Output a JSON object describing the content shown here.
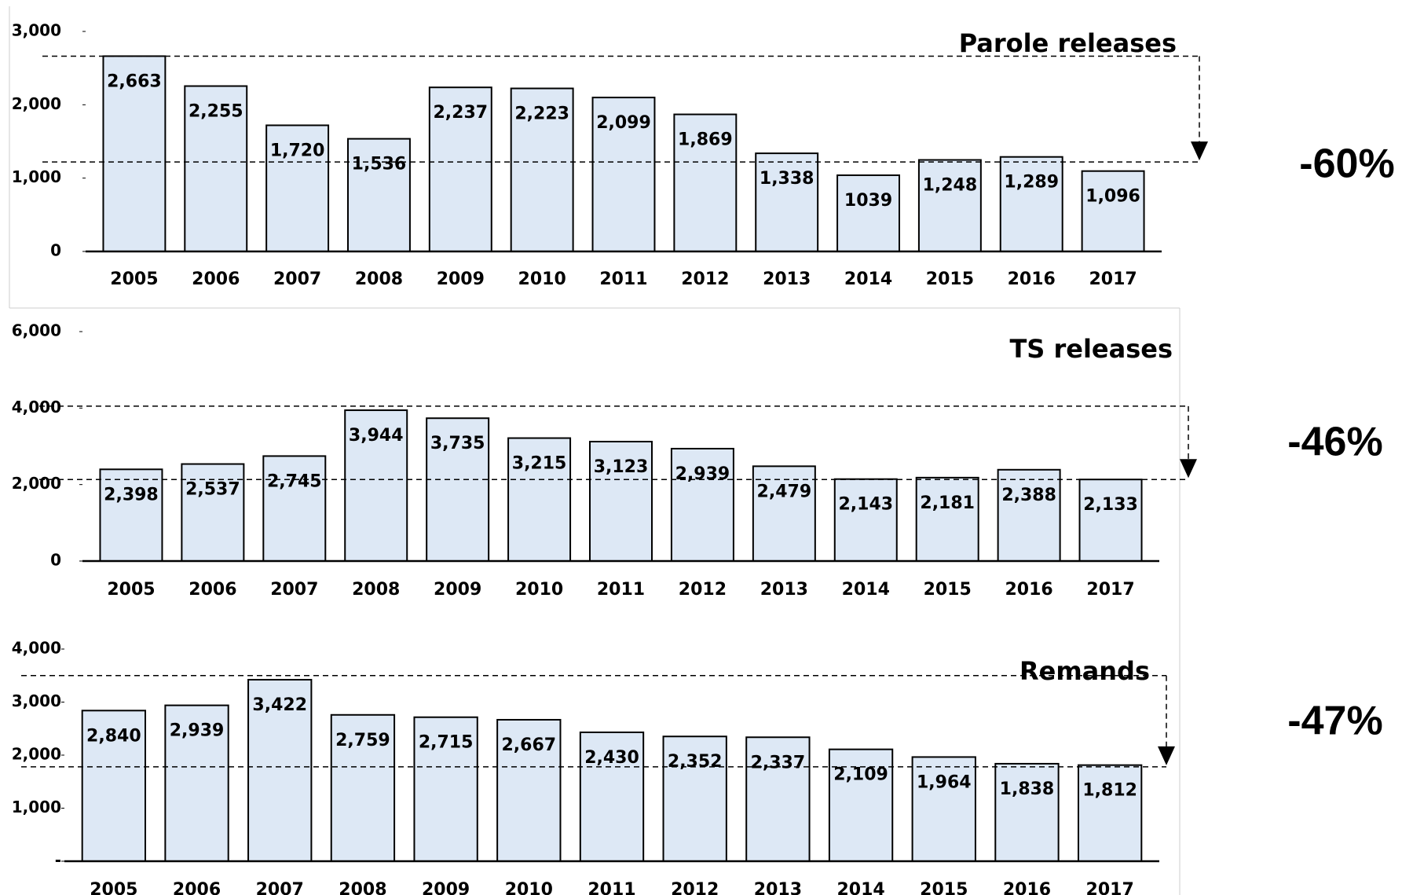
{
  "chart_data": [
    {
      "type": "bar",
      "title": "Parole releases",
      "annotation": "-60%",
      "categories": [
        "2005",
        "2006",
        "2007",
        "2008",
        "2009",
        "2010",
        "2011",
        "2012",
        "2013",
        "2014",
        "2015",
        "2016",
        "2017"
      ],
      "values": [
        2663,
        2255,
        1720,
        1536,
        2237,
        2223,
        2099,
        1869,
        1338,
        1039,
        1248,
        1289,
        1096
      ],
      "value_labels": [
        "2,663",
        "2,255",
        "1,720",
        "1,536",
        "2,237",
        "2,223",
        "2,099",
        "1,869",
        "1,338",
        "1039",
        "1,248",
        "1,289",
        "1,096"
      ],
      "color": "#dde8f5",
      "ylim": [
        0,
        3000
      ],
      "yticks": [
        0,
        {
          "value": 1000,
          "label": "1,000"
        },
        {
          "value": 2000,
          "label": "2,000"
        },
        {
          "value": 3000,
          "label": "3,000"
        }
      ],
      "reference_lines": [
        2663,
        1220
      ]
    },
    {
      "type": "bar",
      "title": "TS releases",
      "annotation": "-46%",
      "categories": [
        "2005",
        "2006",
        "2007",
        "2008",
        "2009",
        "2010",
        "2011",
        "2012",
        "2013",
        "2014",
        "2015",
        "2016",
        "2017"
      ],
      "values": [
        2398,
        2537,
        2745,
        3944,
        3735,
        3215,
        3123,
        2939,
        2479,
        2143,
        2181,
        2388,
        2133
      ],
      "value_labels": [
        "2,398",
        "2,537",
        "2,745",
        "3,944",
        "3,735",
        "3,215",
        "3,123",
        "2,939",
        "2,479",
        "2,143",
        "2,181",
        "2,388",
        "2,133"
      ],
      "color": "#dde8f5",
      "ylim": [
        0,
        6000
      ],
      "yticks": [
        0,
        {
          "value": 2000,
          "label": "2,000"
        },
        {
          "value": 4000,
          "label": "4,000"
        },
        {
          "value": 6000,
          "label": "6,000"
        }
      ],
      "reference_lines": [
        4050,
        2133
      ]
    },
    {
      "type": "bar",
      "title": "Remands",
      "annotation": "-47%",
      "categories": [
        "2005",
        "2006",
        "2007",
        "2008",
        "2009",
        "2010",
        "2011",
        "2012",
        "2013",
        "2014",
        "2015",
        "2016",
        "2017"
      ],
      "values": [
        2840,
        2939,
        3422,
        2759,
        2715,
        2667,
        2430,
        2352,
        2337,
        2109,
        1964,
        1838,
        1812
      ],
      "value_labels": [
        "2,840",
        "2,939",
        "3,422",
        "2,759",
        "2,715",
        "2,667",
        "2,430",
        "2,352",
        "2,337",
        "2,109",
        "1,964",
        "1,838",
        "1,812"
      ],
      "color": "#dde8f5",
      "ylim": [
        0,
        4000
      ],
      "yticks": [
        {
          "value": 0,
          "label": "-"
        },
        {
          "value": 1000,
          "label": "1,000"
        },
        {
          "value": 2000,
          "label": "2,000"
        },
        {
          "value": 3000,
          "label": "3,000"
        },
        {
          "value": 4000,
          "label": "4,000"
        }
      ],
      "reference_lines": [
        3500,
        1780
      ]
    }
  ]
}
